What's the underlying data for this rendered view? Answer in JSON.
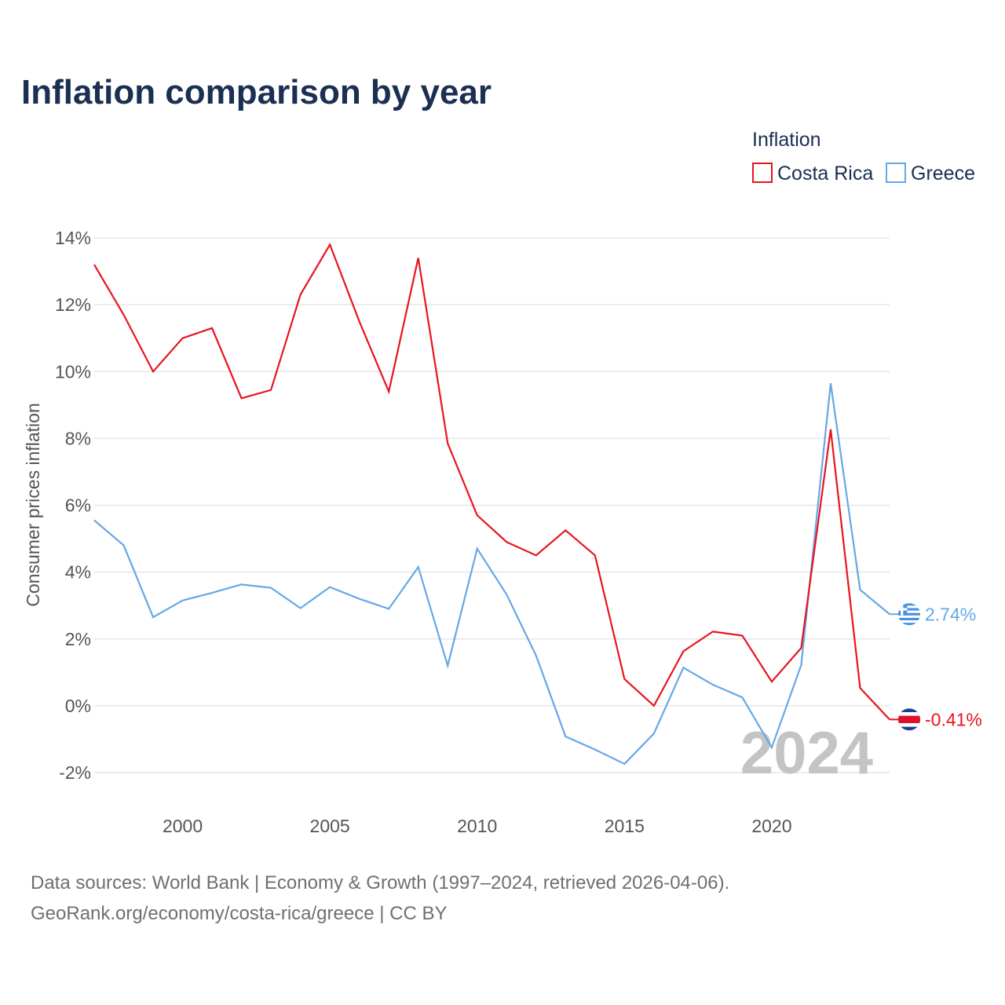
{
  "chart_data": {
    "type": "line",
    "title": "Inflation comparison by year",
    "legend_title": "Inflation",
    "legend_position": "top-right",
    "ylabel": "Consumer prices inflation",
    "xlabel": "",
    "xlim": [
      1997,
      2024
    ],
    "ylim": [
      -2,
      14
    ],
    "x_ticks": [
      2000,
      2005,
      2010,
      2015,
      2020
    ],
    "x_tick_labels": [
      "2000",
      "2005",
      "2010",
      "2015",
      "2020"
    ],
    "y_ticks": [
      -2,
      0,
      2,
      4,
      6,
      8,
      10,
      12,
      14
    ],
    "y_tick_labels": [
      "-2%",
      "0%",
      "2%",
      "4%",
      "6%",
      "8%",
      "10%",
      "12%",
      "14%"
    ],
    "grid": true,
    "watermark_year": "2024",
    "x": [
      1997,
      1998,
      1999,
      2000,
      2001,
      2002,
      2003,
      2004,
      2005,
      2006,
      2007,
      2008,
      2009,
      2010,
      2011,
      2012,
      2013,
      2014,
      2015,
      2016,
      2017,
      2018,
      2019,
      2020,
      2021,
      2022,
      2023,
      2024
    ],
    "series": [
      {
        "name": "Costa Rica",
        "color": "#e8141e",
        "flag": "costa-rica-flag",
        "end_label": "-0.41%",
        "values": [
          13.2,
          11.7,
          10.0,
          11.0,
          11.3,
          9.2,
          9.45,
          12.3,
          13.8,
          11.5,
          9.4,
          13.4,
          7.85,
          5.7,
          4.9,
          4.5,
          5.25,
          4.5,
          0.8,
          0.0,
          1.63,
          2.22,
          2.1,
          0.72,
          1.73,
          8.27,
          0.53,
          -0.41
        ]
      },
      {
        "name": "Greece",
        "color": "#64a8e6",
        "flag": "greece-flag",
        "end_label": "2.74%",
        "values": [
          5.55,
          4.8,
          2.65,
          3.15,
          3.38,
          3.63,
          3.53,
          2.92,
          3.55,
          3.2,
          2.9,
          4.15,
          1.2,
          4.7,
          3.33,
          1.5,
          -0.92,
          -1.31,
          -1.74,
          -0.83,
          1.14,
          0.63,
          0.25,
          -1.25,
          1.22,
          9.65,
          3.47,
          2.74
        ]
      }
    ]
  },
  "source": {
    "line1": "Data sources: World Bank | Economy & Growth (1997–2024, retrieved 2026-04-06).",
    "line2": "GeoRank.org/economy/costa-rica/greece | CC BY"
  }
}
